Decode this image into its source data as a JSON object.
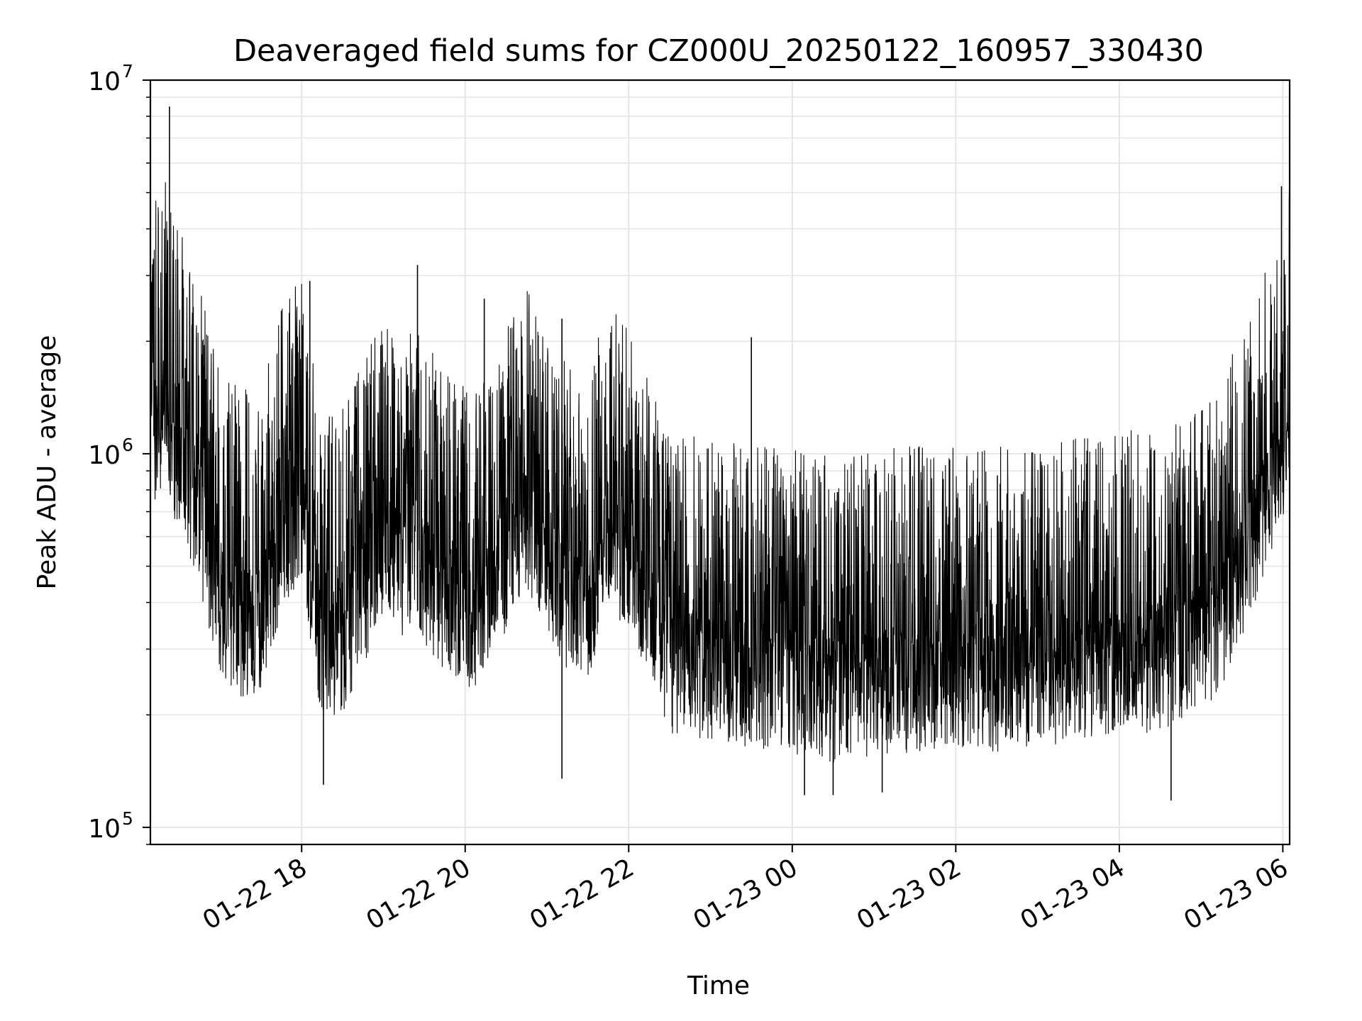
{
  "chart_data": {
    "type": "line",
    "title": "Deaveraged field sums for CZ000U_20250122_160957_330430",
    "xlabel": "Time",
    "ylabel": "Peak ADU - average",
    "yscale": "log",
    "ylim": [
      90000,
      10000000
    ],
    "xlim": [
      "2025-01-22 16:09",
      "2025-01-23 06:05"
    ],
    "grid": true,
    "x_ticks": [
      "2025-01-22 18:00",
      "2025-01-22 20:00",
      "2025-01-22 22:00",
      "2025-01-23 00:00",
      "2025-01-23 02:00",
      "2025-01-23 04:00",
      "2025-01-23 06:00"
    ],
    "x_tick_labels": [
      "01-22 18",
      "01-22 20",
      "01-22 22",
      "01-23 00",
      "01-23 02",
      "01-23 04",
      "01-23 06"
    ],
    "y_tick_labels": [
      {
        "value": 100000,
        "base": "10",
        "exp": "5"
      },
      {
        "value": 1000000,
        "base": "10",
        "exp": "6"
      },
      {
        "value": 10000000,
        "base": "10",
        "exp": "7"
      }
    ],
    "color": "#000000",
    "series": [
      {
        "x": [
          "2025-01-22 16:09",
          "2025-01-22 16:20",
          "2025-01-22 16:30",
          "2025-01-22 16:45",
          "2025-01-22 17:00",
          "2025-01-22 17:15",
          "2025-01-22 17:30",
          "2025-01-22 17:45",
          "2025-01-22 18:00",
          "2025-01-22 18:15",
          "2025-01-22 18:30",
          "2025-01-22 18:45",
          "2025-01-22 19:00",
          "2025-01-22 19:15",
          "2025-01-22 19:30",
          "2025-01-22 19:45",
          "2025-01-22 20:00",
          "2025-01-22 20:15",
          "2025-01-22 20:30",
          "2025-01-22 20:45",
          "2025-01-22 21:00",
          "2025-01-22 21:15",
          "2025-01-22 21:30",
          "2025-01-22 21:45",
          "2025-01-22 22:00",
          "2025-01-22 22:30",
          "2025-01-22 23:00",
          "2025-01-22 23:30",
          "2025-01-23 00:00",
          "2025-01-23 00:30",
          "2025-01-23 01:00",
          "2025-01-23 01:30",
          "2025-01-23 02:00",
          "2025-01-23 02:30",
          "2025-01-23 03:00",
          "2025-01-23 03:30",
          "2025-01-23 04:00",
          "2025-01-23 04:30",
          "2025-01-23 05:00",
          "2025-01-23 05:15",
          "2025-01-23 05:30",
          "2025-01-23 05:45",
          "2025-01-23 06:00",
          "2025-01-23 06:05"
        ],
        "y": [
          1050000,
          1200000,
          900000,
          650000,
          380000,
          330000,
          340000,
          550000,
          700000,
          280000,
          300000,
          400000,
          520000,
          480000,
          460000,
          380000,
          340000,
          350000,
          480000,
          620000,
          500000,
          380000,
          360000,
          600000,
          480000,
          260000,
          250000,
          240000,
          230000,
          220000,
          230000,
          235000,
          240000,
          235000,
          245000,
          250000,
          255000,
          270000,
          300000,
          350000,
          480000,
          650000,
          950000,
          1300000
        ],
        "peaks": [
          {
            "x": "2025-01-22 16:23",
            "y": 8500000
          },
          {
            "x": "2025-01-22 19:25",
            "y": 3200000
          },
          {
            "x": "2025-01-22 18:06",
            "y": 2900000
          },
          {
            "x": "2025-01-22 20:14",
            "y": 2600000
          },
          {
            "x": "2025-01-22 21:11",
            "y": 2300000
          },
          {
            "x": "2025-01-22 23:30",
            "y": 2050000
          },
          {
            "x": "2025-01-23 05:59",
            "y": 5200000
          },
          {
            "x": "2025-01-23 06:01",
            "y": 3300000
          }
        ],
        "minima": [
          {
            "x": "2025-01-22 18:16",
            "y": 130000
          },
          {
            "x": "2025-01-22 21:11",
            "y": 135000
          },
          {
            "x": "2025-01-23 00:09",
            "y": 122000
          },
          {
            "x": "2025-01-23 00:30",
            "y": 122000
          },
          {
            "x": "2025-01-23 01:06",
            "y": 124000
          },
          {
            "x": "2025-01-23 04:38",
            "y": 118000
          }
        ]
      }
    ]
  }
}
